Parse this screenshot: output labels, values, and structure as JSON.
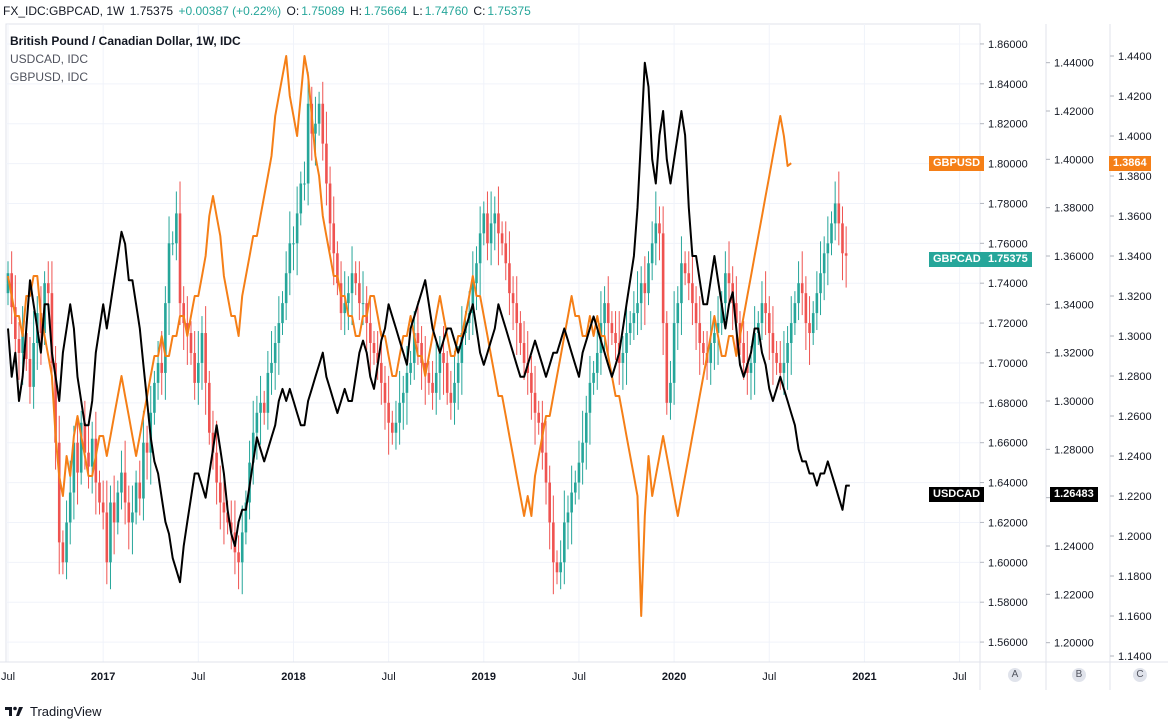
{
  "header": {
    "symbol": "FX_IDC:GBPCAD, 1W",
    "last": "1.75375",
    "change": "+0.00387 (+0.22%)",
    "o_label": "O:",
    "o": "1.75089",
    "h_label": "H:",
    "h": "1.75664",
    "l_label": "L:",
    "l": "1.74760",
    "c_label": "C:",
    "c": "1.75375"
  },
  "legend": {
    "main": "British Pound / Canadian Dollar, 1W, IDC",
    "series2": "USDCAD, IDC",
    "series3": "GBPUSD, IDC"
  },
  "footer": {
    "brand": "TradingView"
  },
  "scale_buttons": {
    "a": "A",
    "b": "B",
    "c": "C"
  },
  "tags": {
    "gbpusd_name": "GBPUSD",
    "gbpusd_value": "1.3864",
    "gbpcad_name": "GBPCAD",
    "gbpcad_value": "1.75375",
    "usdcad_name": "USDCAD",
    "usdcad_value": "1.26483"
  },
  "colors": {
    "up": "#26a69a",
    "down": "#ef5350",
    "gbpusd": "#f57f17",
    "usdcad": "#000000"
  },
  "chart_data": {
    "type": "line",
    "title": "British Pound / Canadian Dollar, 1W, IDC",
    "x_ticks": [
      "Jul",
      "2017",
      "Jul",
      "2018",
      "Jul",
      "2019",
      "Jul",
      "2020",
      "Jul",
      "2021",
      "Jul"
    ],
    "x_tick_index": [
      0,
      26,
      52,
      78,
      104,
      130,
      156,
      182,
      208,
      234,
      260
    ],
    "axis_A": {
      "range": [
        1.55,
        1.87
      ],
      "ticks": [
        "1.86000",
        "1.84000",
        "1.82000",
        "1.80000",
        "1.78000",
        "1.76000",
        "1.74000",
        "1.72000",
        "1.70000",
        "1.68000",
        "1.66000",
        "1.64000",
        "1.62000",
        "1.60000",
        "1.58000",
        "1.56000"
      ]
    },
    "axis_B": {
      "range": [
        1.192,
        1.456
      ],
      "ticks": [
        "1.44000",
        "1.42000",
        "1.40000",
        "1.38000",
        "1.36000",
        "1.34000",
        "1.32000",
        "1.30000",
        "1.28000",
        "1.26000",
        "1.24000",
        "1.22000",
        "1.20000"
      ]
    },
    "axis_C": {
      "range": [
        1.137,
        1.456
      ],
      "ticks": [
        "1.4400",
        "1.4200",
        "1.4000",
        "1.3800",
        "1.3600",
        "1.3400",
        "1.3200",
        "1.3000",
        "1.2800",
        "1.2600",
        "1.2400",
        "1.2200",
        "1.2000",
        "1.1800",
        "1.1600",
        "1.1400"
      ]
    },
    "gbpcad_weekly_close": [
      1.745,
      1.728,
      1.712,
      1.705,
      1.715,
      1.702,
      1.688,
      1.71,
      1.725,
      1.715,
      1.74,
      1.735,
      1.7,
      1.66,
      1.61,
      1.6,
      1.62,
      1.635,
      1.66,
      1.645,
      1.67,
      1.655,
      1.648,
      1.662,
      1.64,
      1.63,
      1.625,
      1.6,
      1.63,
      1.62,
      1.635,
      1.645,
      1.63,
      1.62,
      1.625,
      1.64,
      1.632,
      1.66,
      1.655,
      1.675,
      1.69,
      1.7,
      1.695,
      1.73,
      1.76,
      1.76,
      1.775,
      1.73,
      1.72,
      1.715,
      1.705,
      1.69,
      1.7,
      1.715,
      1.69,
      1.665,
      1.655,
      1.64,
      1.63,
      1.625,
      1.62,
      1.615,
      1.605,
      1.6,
      1.615,
      1.63,
      1.65,
      1.665,
      1.675,
      1.68,
      1.675,
      1.695,
      1.7,
      1.71,
      1.72,
      1.73,
      1.745,
      1.76,
      1.76,
      1.775,
      1.79,
      1.79,
      1.83,
      1.815,
      1.82,
      1.83,
      1.81,
      1.79,
      1.77,
      1.755,
      1.74,
      1.725,
      1.73,
      1.735,
      1.745,
      1.74,
      1.73,
      1.73,
      1.72,
      1.71,
      1.705,
      1.7,
      1.69,
      1.68,
      1.67,
      1.665,
      1.67,
      1.68,
      1.685,
      1.695,
      1.7,
      1.715,
      1.71,
      1.7,
      1.695,
      1.69,
      1.685,
      1.695,
      1.705,
      1.7,
      1.685,
      1.68,
      1.69,
      1.7,
      1.715,
      1.72,
      1.725,
      1.74,
      1.75,
      1.765,
      1.775,
      1.76,
      1.77,
      1.775,
      1.765,
      1.76,
      1.75,
      1.735,
      1.73,
      1.72,
      1.71,
      1.7,
      1.695,
      1.685,
      1.675,
      1.67,
      1.655,
      1.64,
      1.62,
      1.6,
      1.595,
      1.6,
      1.62,
      1.625,
      1.635,
      1.64,
      1.65,
      1.66,
      1.675,
      1.69,
      1.695,
      1.705,
      1.72,
      1.73,
      1.72,
      1.715,
      1.71,
      1.7,
      1.705,
      1.715,
      1.72,
      1.725,
      1.73,
      1.74,
      1.735,
      1.75,
      1.76,
      1.77,
      1.765,
      1.72,
      1.68,
      1.69,
      1.72,
      1.73,
      1.75,
      1.745,
      1.74,
      1.73,
      1.72,
      1.71,
      1.705,
      1.7,
      1.71,
      1.715,
      1.72,
      1.73,
      1.745,
      1.74,
      1.73,
      1.72,
      1.71,
      1.7,
      1.695,
      1.7,
      1.715,
      1.72,
      1.73,
      1.725,
      1.715,
      1.705,
      1.7,
      1.695,
      1.7,
      1.71,
      1.72,
      1.73,
      1.74,
      1.735,
      1.72,
      1.715,
      1.725,
      1.735,
      1.745,
      1.755,
      1.76,
      1.77,
      1.78,
      1.77,
      1.755,
      1.7538
    ],
    "usdcad_close": [
      1.33,
      1.31,
      1.32,
      1.3,
      1.31,
      1.33,
      1.35,
      1.34,
      1.33,
      1.32,
      1.34,
      1.34,
      1.32,
      1.31,
      1.3,
      1.32,
      1.33,
      1.34,
      1.33,
      1.31,
      1.3,
      1.29,
      1.29,
      1.3,
      1.32,
      1.33,
      1.34,
      1.33,
      1.34,
      1.35,
      1.36,
      1.37,
      1.365,
      1.35,
      1.35,
      1.34,
      1.33,
      1.315,
      1.3,
      1.285,
      1.275,
      1.27,
      1.26,
      1.25,
      1.245,
      1.235,
      1.23,
      1.225,
      1.24,
      1.25,
      1.26,
      1.27,
      1.27,
      1.265,
      1.26,
      1.27,
      1.28,
      1.29,
      1.28,
      1.27,
      1.255,
      1.245,
      1.24,
      1.25,
      1.255,
      1.255,
      1.265,
      1.275,
      1.285,
      1.28,
      1.275,
      1.28,
      1.285,
      1.29,
      1.3,
      1.305,
      1.3,
      1.305,
      1.3,
      1.295,
      1.29,
      1.29,
      1.3,
      1.305,
      1.31,
      1.315,
      1.32,
      1.31,
      1.305,
      1.3,
      1.295,
      1.3,
      1.305,
      1.3,
      1.3,
      1.31,
      1.32,
      1.325,
      1.32,
      1.31,
      1.305,
      1.315,
      1.325,
      1.33,
      1.34,
      1.335,
      1.33,
      1.325,
      1.32,
      1.315,
      1.33,
      1.335,
      1.34,
      1.345,
      1.35,
      1.34,
      1.33,
      1.325,
      1.32,
      1.325,
      1.33,
      1.33,
      1.325,
      1.32,
      1.325,
      1.33,
      1.335,
      1.34,
      1.33,
      1.32,
      1.315,
      1.32,
      1.325,
      1.33,
      1.34,
      1.335,
      1.33,
      1.325,
      1.32,
      1.315,
      1.31,
      1.31,
      1.315,
      1.32,
      1.325,
      1.32,
      1.315,
      1.31,
      1.315,
      1.32,
      1.32,
      1.325,
      1.33,
      1.325,
      1.32,
      1.315,
      1.31,
      1.32,
      1.325,
      1.33,
      1.335,
      1.33,
      1.325,
      1.32,
      1.315,
      1.31,
      1.315,
      1.32,
      1.33,
      1.34,
      1.35,
      1.36,
      1.38,
      1.41,
      1.44,
      1.43,
      1.4,
      1.39,
      1.41,
      1.42,
      1.4,
      1.39,
      1.4,
      1.41,
      1.42,
      1.41,
      1.38,
      1.36,
      1.36,
      1.35,
      1.34,
      1.34,
      1.35,
      1.36,
      1.35,
      1.34,
      1.33,
      1.34,
      1.345,
      1.33,
      1.315,
      1.31,
      1.315,
      1.32,
      1.33,
      1.33,
      1.32,
      1.315,
      1.305,
      1.3,
      1.305,
      1.31,
      1.305,
      1.3,
      1.295,
      1.29,
      1.28,
      1.275,
      1.275,
      1.27,
      1.27,
      1.265,
      1.27,
      1.27,
      1.275,
      1.27,
      1.265,
      1.26,
      1.255,
      1.265,
      1.265
    ],
    "gbpusd_close": [
      1.33,
      1.32,
      1.31,
      1.31,
      1.3,
      1.32,
      1.32,
      1.33,
      1.33,
      1.31,
      1.3,
      1.29,
      1.28,
      1.25,
      1.23,
      1.22,
      1.24,
      1.23,
      1.25,
      1.26,
      1.25,
      1.24,
      1.23,
      1.23,
      1.24,
      1.25,
      1.25,
      1.24,
      1.25,
      1.26,
      1.27,
      1.28,
      1.27,
      1.26,
      1.25,
      1.24,
      1.25,
      1.26,
      1.27,
      1.28,
      1.29,
      1.29,
      1.3,
      1.29,
      1.29,
      1.3,
      1.3,
      1.31,
      1.31,
      1.3,
      1.31,
      1.32,
      1.32,
      1.33,
      1.34,
      1.36,
      1.37,
      1.36,
      1.35,
      1.33,
      1.32,
      1.31,
      1.31,
      1.3,
      1.32,
      1.33,
      1.34,
      1.35,
      1.35,
      1.36,
      1.37,
      1.38,
      1.39,
      1.41,
      1.42,
      1.43,
      1.44,
      1.42,
      1.41,
      1.4,
      1.42,
      1.44,
      1.43,
      1.41,
      1.39,
      1.38,
      1.36,
      1.35,
      1.34,
      1.33,
      1.33,
      1.32,
      1.32,
      1.31,
      1.31,
      1.3,
      1.3,
      1.31,
      1.31,
      1.32,
      1.32,
      1.31,
      1.3,
      1.3,
      1.29,
      1.28,
      1.28,
      1.29,
      1.3,
      1.3,
      1.31,
      1.3,
      1.29,
      1.29,
      1.28,
      1.29,
      1.3,
      1.31,
      1.32,
      1.31,
      1.3,
      1.29,
      1.29,
      1.3,
      1.3,
      1.31,
      1.32,
      1.33,
      1.32,
      1.32,
      1.31,
      1.3,
      1.29,
      1.28,
      1.27,
      1.27,
      1.26,
      1.25,
      1.24,
      1.23,
      1.22,
      1.21,
      1.22,
      1.21,
      1.23,
      1.24,
      1.25,
      1.26,
      1.26,
      1.27,
      1.28,
      1.29,
      1.3,
      1.31,
      1.32,
      1.31,
      1.31,
      1.3,
      1.3,
      1.31,
      1.3,
      1.31,
      1.3,
      1.3,
      1.29,
      1.28,
      1.27,
      1.27,
      1.26,
      1.25,
      1.24,
      1.23,
      1.22,
      1.16,
      1.21,
      1.24,
      1.22,
      1.23,
      1.24,
      1.25,
      1.24,
      1.23,
      1.22,
      1.21,
      1.22,
      1.23,
      1.24,
      1.25,
      1.26,
      1.27,
      1.28,
      1.29,
      1.3,
      1.31,
      1.3,
      1.29,
      1.29,
      1.3,
      1.3,
      1.29,
      1.3,
      1.31,
      1.32,
      1.33,
      1.34,
      1.35,
      1.36,
      1.37,
      1.38,
      1.39,
      1.4,
      1.41,
      1.4,
      1.385,
      1.3864
    ]
  }
}
